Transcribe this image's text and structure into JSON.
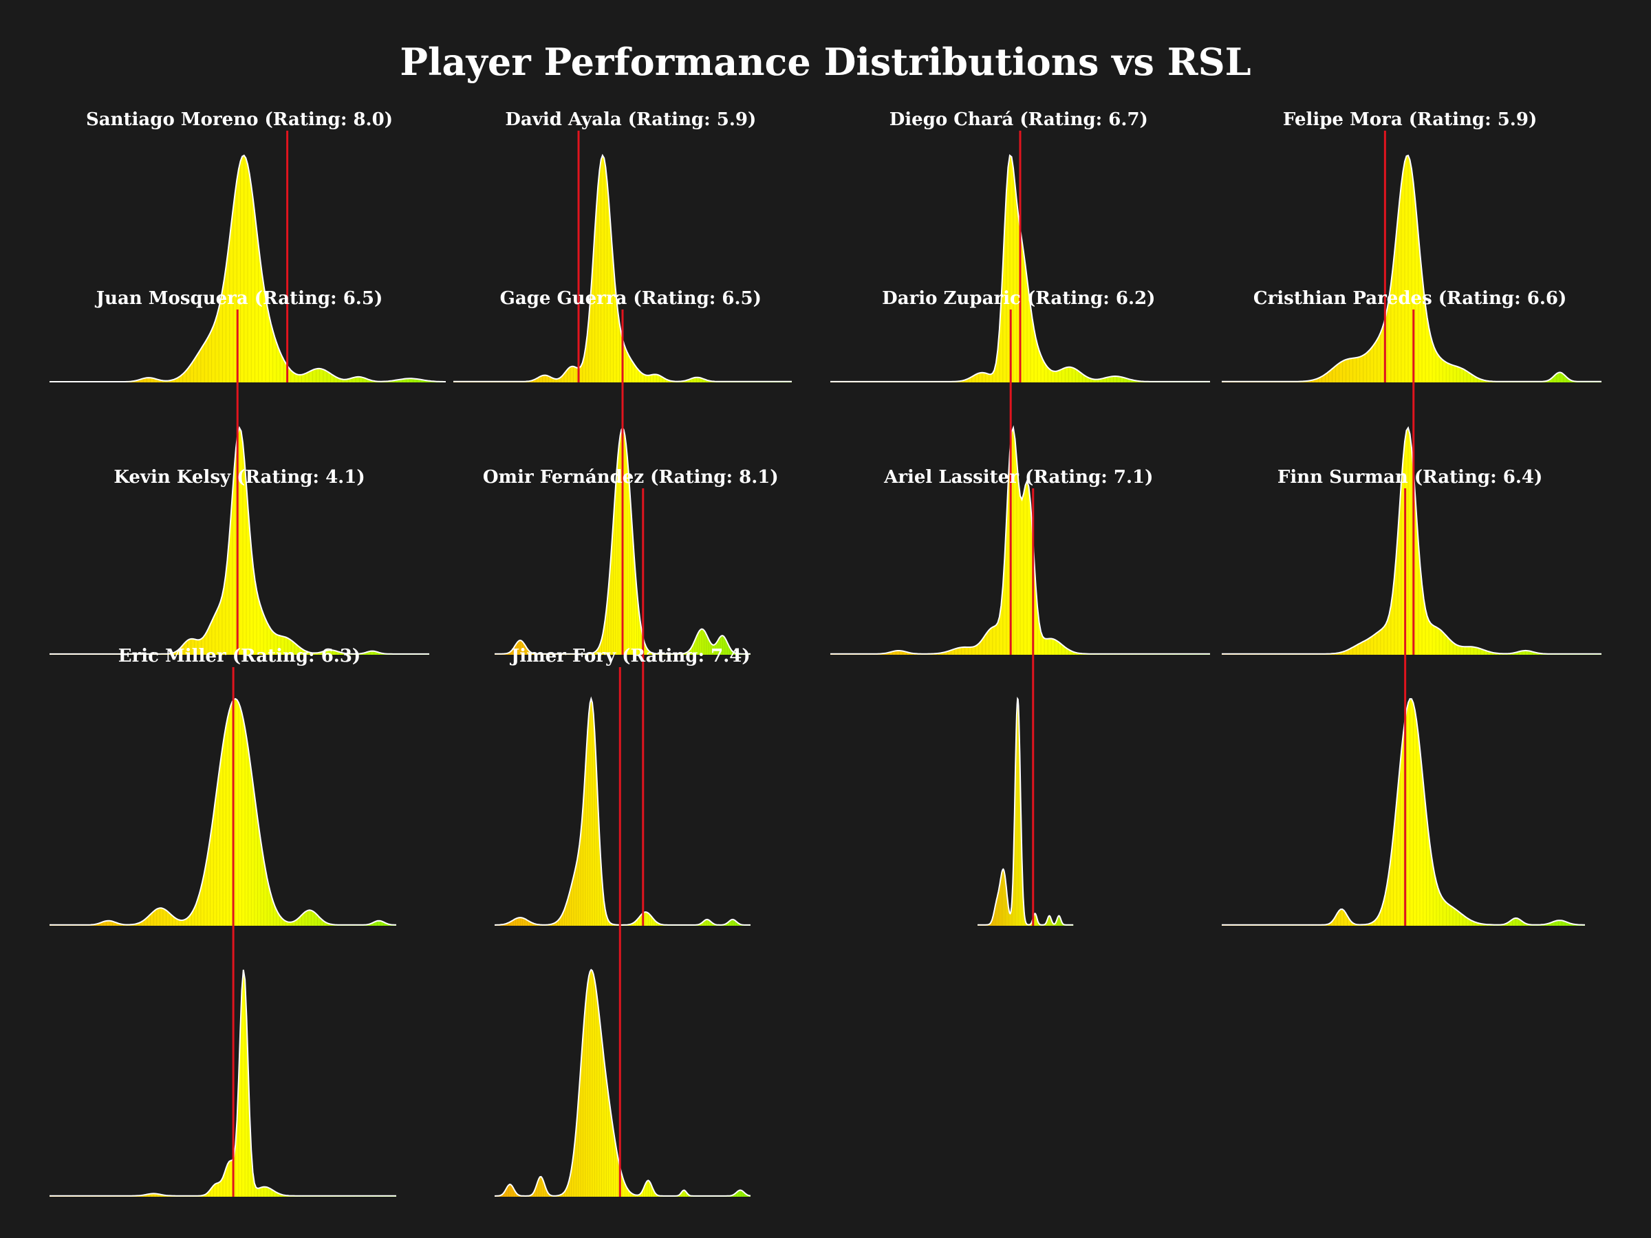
{
  "title": "Player Performance Distributions vs RSL",
  "colors": {
    "background": "#1b1b1b",
    "text": "#ffffff",
    "fill_low": "#f2a900",
    "fill_mid": "#ffff00",
    "fill_high": "#88ee00",
    "outline": "#ffffff",
    "reference_line": "#e0141e"
  },
  "chart_data": [
    {
      "type": "area",
      "title": "Santiago Moreno (Rating: 8.0)",
      "reference_line": 8.0,
      "peaks": [
        {
          "x": 0.49,
          "h": 1.0,
          "w": 0.03
        },
        {
          "x": 0.45,
          "h": 0.35,
          "w": 0.05
        },
        {
          "x": 0.54,
          "h": 0.28,
          "w": 0.04
        },
        {
          "x": 0.38,
          "h": 0.06,
          "w": 0.03
        },
        {
          "x": 0.68,
          "h": 0.08,
          "w": 0.03
        },
        {
          "x": 0.78,
          "h": 0.03,
          "w": 0.02
        },
        {
          "x": 0.25,
          "h": 0.025,
          "w": 0.02
        },
        {
          "x": 0.91,
          "h": 0.02,
          "w": 0.03
        }
      ],
      "marker_x": 0.6,
      "panel_width": 0.24
    },
    {
      "type": "area",
      "title": "David Ayala (Rating: 5.9)",
      "reference_line": 5.9,
      "peaks": [
        {
          "x": 0.44,
          "h": 1.0,
          "w": 0.025
        },
        {
          "x": 0.49,
          "h": 0.15,
          "w": 0.04
        },
        {
          "x": 0.35,
          "h": 0.07,
          "w": 0.02
        },
        {
          "x": 0.27,
          "h": 0.03,
          "w": 0.02
        },
        {
          "x": 0.6,
          "h": 0.03,
          "w": 0.02
        },
        {
          "x": 0.72,
          "h": 0.02,
          "w": 0.02
        }
      ],
      "marker_x": 0.37,
      "panel_width": 0.205
    },
    {
      "type": "area",
      "title": "Diego Chará (Rating: 6.7)",
      "reference_line": 6.7,
      "peaks": [
        {
          "x": 0.47,
          "h": 1.0,
          "w": 0.015
        },
        {
          "x": 0.5,
          "h": 0.6,
          "w": 0.02
        },
        {
          "x": 0.53,
          "h": 0.18,
          "w": 0.03
        },
        {
          "x": 0.4,
          "h": 0.05,
          "w": 0.025
        },
        {
          "x": 0.63,
          "h": 0.08,
          "w": 0.03
        },
        {
          "x": 0.75,
          "h": 0.03,
          "w": 0.03
        }
      ],
      "marker_x": 0.5,
      "panel_width": 0.23
    },
    {
      "type": "area",
      "title": "Felipe Mora (Rating: 5.9)",
      "reference_line": 5.9,
      "peaks": [
        {
          "x": 0.49,
          "h": 1.0,
          "w": 0.028
        },
        {
          "x": 0.43,
          "h": 0.2,
          "w": 0.04
        },
        {
          "x": 0.55,
          "h": 0.12,
          "w": 0.04
        },
        {
          "x": 0.33,
          "h": 0.1,
          "w": 0.04
        },
        {
          "x": 0.63,
          "h": 0.05,
          "w": 0.03
        },
        {
          "x": 0.89,
          "h": 0.045,
          "w": 0.015
        }
      ],
      "marker_x": 0.43,
      "panel_width": 0.23
    },
    {
      "type": "area",
      "title": "Juan Mosquera (Rating: 6.5)",
      "reference_line": 6.5,
      "peaks": [
        {
          "x": 0.5,
          "h": 1.0,
          "w": 0.02
        },
        {
          "x": 0.54,
          "h": 0.25,
          "w": 0.03
        },
        {
          "x": 0.45,
          "h": 0.22,
          "w": 0.03
        },
        {
          "x": 0.37,
          "h": 0.07,
          "w": 0.02
        },
        {
          "x": 0.62,
          "h": 0.08,
          "w": 0.03
        },
        {
          "x": 0.74,
          "h": 0.02,
          "w": 0.02
        },
        {
          "x": 0.85,
          "h": 0.015,
          "w": 0.015
        }
      ],
      "marker_x": 0.495,
      "panel_width": 0.23
    },
    {
      "type": "area",
      "title": "Gage Guerra (Rating: 6.5)",
      "reference_line": 6.5,
      "peaks": [
        {
          "x": 0.5,
          "h": 1.0,
          "w": 0.035
        },
        {
          "x": 0.1,
          "h": 0.06,
          "w": 0.02
        },
        {
          "x": 0.81,
          "h": 0.11,
          "w": 0.025
        },
        {
          "x": 0.89,
          "h": 0.08,
          "w": 0.02
        }
      ],
      "marker_x": 0.5,
      "panel_width": 0.155
    },
    {
      "type": "area",
      "title": "Dario Zuparic (Rating: 6.2)",
      "reference_line": 6.2,
      "peaks": [
        {
          "x": 0.48,
          "h": 1.0,
          "w": 0.015
        },
        {
          "x": 0.52,
          "h": 0.75,
          "w": 0.015
        },
        {
          "x": 0.43,
          "h": 0.12,
          "w": 0.025
        },
        {
          "x": 0.58,
          "h": 0.07,
          "w": 0.03
        },
        {
          "x": 0.35,
          "h": 0.03,
          "w": 0.03
        },
        {
          "x": 0.18,
          "h": 0.015,
          "w": 0.02
        }
      ],
      "marker_x": 0.475,
      "panel_width": 0.23
    },
    {
      "type": "area",
      "title": "Cristhian Paredes (Rating: 6.6)",
      "reference_line": 6.6,
      "peaks": [
        {
          "x": 0.49,
          "h": 1.0,
          "w": 0.022
        },
        {
          "x": 0.43,
          "h": 0.1,
          "w": 0.03
        },
        {
          "x": 0.56,
          "h": 0.12,
          "w": 0.035
        },
        {
          "x": 0.37,
          "h": 0.04,
          "w": 0.03
        },
        {
          "x": 0.66,
          "h": 0.03,
          "w": 0.03
        },
        {
          "x": 0.8,
          "h": 0.015,
          "w": 0.02
        }
      ],
      "marker_x": 0.505,
      "panel_width": 0.23
    },
    {
      "type": "area",
      "title": "Kevin Kelsy (Rating: 4.1)",
      "reference_line": 4.1,
      "peaks": [
        {
          "x": 0.53,
          "h": 1.0,
          "w": 0.05
        },
        {
          "x": 0.58,
          "h": 0.15,
          "w": 0.04
        },
        {
          "x": 0.32,
          "h": 0.08,
          "w": 0.03
        },
        {
          "x": 0.75,
          "h": 0.07,
          "w": 0.025
        },
        {
          "x": 0.17,
          "h": 0.02,
          "w": 0.02
        },
        {
          "x": 0.95,
          "h": 0.02,
          "w": 0.015
        }
      ],
      "marker_x": null,
      "panel_width": 0.21
    },
    {
      "type": "area",
      "title": "Omir Fernández (Rating: 8.1)",
      "reference_line": 8.1,
      "peaks": [
        {
          "x": 0.38,
          "h": 1.0,
          "w": 0.022
        },
        {
          "x": 0.34,
          "h": 0.35,
          "w": 0.04
        },
        {
          "x": 0.59,
          "h": 0.07,
          "w": 0.025
        },
        {
          "x": 0.1,
          "h": 0.04,
          "w": 0.03
        },
        {
          "x": 0.83,
          "h": 0.03,
          "w": 0.015
        },
        {
          "x": 0.93,
          "h": 0.03,
          "w": 0.015
        }
      ],
      "marker_x": 0.58,
      "panel_width": 0.155
    },
    {
      "type": "area",
      "title": "Ariel Lassiter (Rating: 7.1)",
      "reference_line": 7.1,
      "peaks": [
        {
          "x": 0.42,
          "h": 1.0,
          "w": 0.028
        },
        {
          "x": 0.27,
          "h": 0.24,
          "w": 0.035
        },
        {
          "x": 0.2,
          "h": 0.08,
          "w": 0.03
        },
        {
          "x": 0.6,
          "h": 0.05,
          "w": 0.02
        },
        {
          "x": 0.75,
          "h": 0.04,
          "w": 0.02
        },
        {
          "x": 0.85,
          "h": 0.04,
          "w": 0.02
        }
      ],
      "marker_x": 0.58,
      "panel_width": 0.058
    },
    {
      "type": "area",
      "title": "Finn Surman (Rating: 6.4)",
      "reference_line": 6.4,
      "peaks": [
        {
          "x": 0.52,
          "h": 1.0,
          "w": 0.035
        },
        {
          "x": 0.33,
          "h": 0.07,
          "w": 0.015
        },
        {
          "x": 0.62,
          "h": 0.08,
          "w": 0.04
        },
        {
          "x": 0.81,
          "h": 0.03,
          "w": 0.015
        },
        {
          "x": 0.93,
          "h": 0.02,
          "w": 0.02
        }
      ],
      "marker_x": 0.505,
      "panel_width": 0.22
    },
    {
      "type": "area",
      "title": "Eric Miller (Rating: 6.3)",
      "reference_line": 6.3,
      "peaks": [
        {
          "x": 0.56,
          "h": 1.0,
          "w": 0.012
        },
        {
          "x": 0.52,
          "h": 0.15,
          "w": 0.015
        },
        {
          "x": 0.48,
          "h": 0.05,
          "w": 0.015
        },
        {
          "x": 0.62,
          "h": 0.04,
          "w": 0.025
        },
        {
          "x": 0.3,
          "h": 0.01,
          "w": 0.02
        }
      ],
      "marker_x": 0.53,
      "panel_width": 0.21
    },
    {
      "type": "area",
      "title": "Jimer Fory (Rating: 7.4)",
      "reference_line": 7.4,
      "peaks": [
        {
          "x": 0.37,
          "h": 1.0,
          "w": 0.035
        },
        {
          "x": 0.43,
          "h": 0.45,
          "w": 0.04
        },
        {
          "x": 0.18,
          "h": 0.1,
          "w": 0.015
        },
        {
          "x": 0.06,
          "h": 0.06,
          "w": 0.015
        },
        {
          "x": 0.6,
          "h": 0.08,
          "w": 0.015
        },
        {
          "x": 0.74,
          "h": 0.03,
          "w": 0.01
        },
        {
          "x": 0.96,
          "h": 0.03,
          "w": 0.015
        }
      ],
      "marker_x": 0.49,
      "panel_width": 0.155
    }
  ]
}
